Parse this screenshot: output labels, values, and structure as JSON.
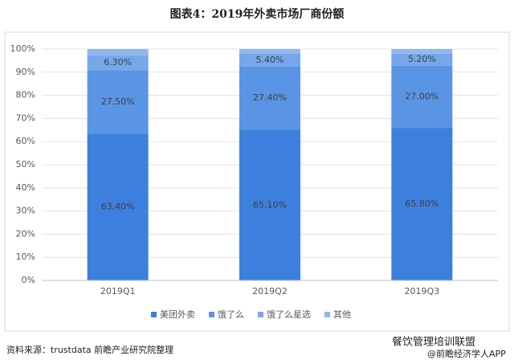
{
  "title": "图表4：2019年外卖市场厂商份额",
  "chart_data": {
    "type": "stacked-bar",
    "categories": [
      "2019Q1",
      "2019Q2",
      "2019Q3"
    ],
    "series": [
      {
        "name": "美团外卖",
        "color": "#3d7fdd",
        "values": [
          63.4,
          65.1,
          65.8
        ],
        "value_labels": [
          "63.40%",
          "65.10%",
          "65.80%"
        ]
      },
      {
        "name": "饿了么",
        "color": "#5a94e4",
        "values": [
          27.5,
          27.4,
          27.0
        ],
        "value_labels": [
          "27.50%",
          "27.40%",
          "27.00%"
        ]
      },
      {
        "name": "饿了么星选",
        "color": "#76a7ea",
        "values": [
          6.3,
          5.4,
          5.2
        ],
        "value_labels": [
          "6.30%",
          "5.40%",
          "5.20%"
        ]
      },
      {
        "name": "其他",
        "color": "#8fb8ef",
        "values": [
          2.8,
          2.1,
          2.0
        ]
      }
    ],
    "ylim": [
      0,
      100
    ],
    "yticks": [
      {
        "value": 0,
        "label": "0%"
      },
      {
        "value": 10,
        "label": "10%"
      },
      {
        "value": 20,
        "label": "20%"
      },
      {
        "value": 30,
        "label": "30%"
      },
      {
        "value": 40,
        "label": "40%"
      },
      {
        "value": 50,
        "label": "50%"
      },
      {
        "value": 60,
        "label": "60%"
      },
      {
        "value": 70,
        "label": "70%"
      },
      {
        "value": 80,
        "label": "80%"
      },
      {
        "value": 90,
        "label": "90%"
      },
      {
        "value": 100,
        "label": "100%"
      }
    ]
  },
  "source": "资料来源：trustdata 前瞻产业研究院整理",
  "watermark": {
    "account": "餐饮管理培训联盟",
    "app": "@前瞻经济学人APP"
  }
}
